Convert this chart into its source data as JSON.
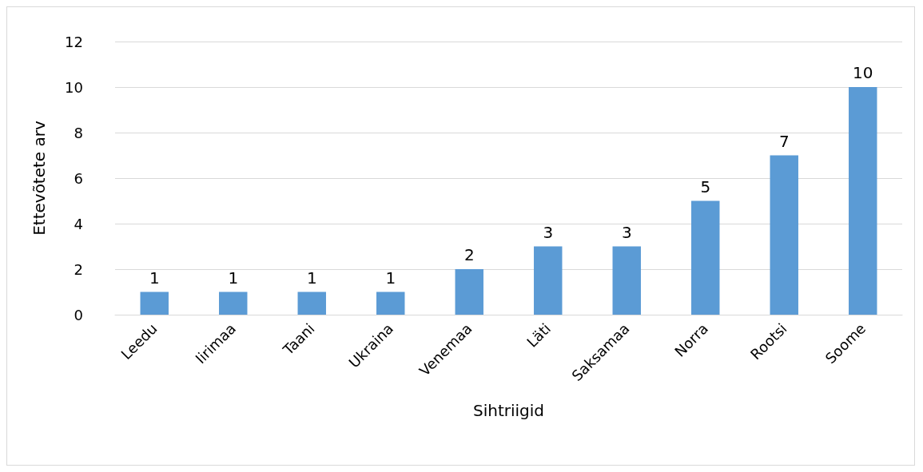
{
  "chart_data": {
    "type": "bar",
    "xlabel": "Sihtriigid",
    "ylabel": "Ettevõtete arv",
    "categories": [
      "Leedu",
      "Iirimaa",
      "Taani",
      "Ukraina",
      "Venemaa",
      "Läti",
      "Saksamaa",
      "Norra",
      "Rootsi",
      "Soome"
    ],
    "values": [
      1,
      1,
      1,
      1,
      2,
      3,
      3,
      5,
      7,
      10
    ],
    "color": "#5b9bd5",
    "ylim": [
      0,
      12
    ],
    "yticks": [
      0,
      2,
      4,
      6,
      8,
      10,
      12
    ],
    "grid": "y",
    "data_labels": true
  }
}
